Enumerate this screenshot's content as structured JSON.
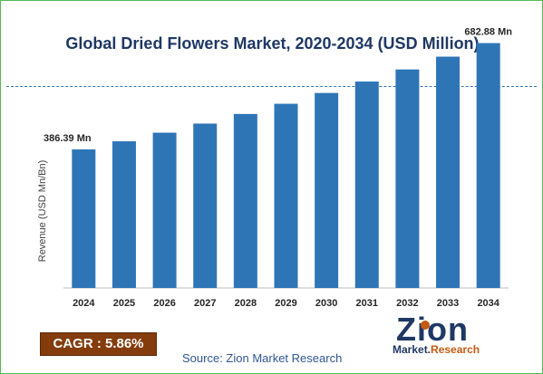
{
  "title": "Global Dried Flowers Market, 2020-2034 (USD Million)",
  "chart_data": {
    "type": "bar",
    "categories": [
      "2024",
      "2025",
      "2026",
      "2027",
      "2028",
      "2029",
      "2030",
      "2031",
      "2032",
      "2033",
      "2034"
    ],
    "values": [
      386.39,
      409.03,
      433.0,
      458.37,
      485.23,
      513.66,
      543.76,
      575.63,
      609.36,
      645.07,
      682.88
    ],
    "data_labels": [
      {
        "category": "2024",
        "text": "386.39 Mn"
      },
      {
        "category": "2034",
        "text": "682.88 Mn"
      }
    ],
    "title": "Global Dried Flowers Market, 2020-2034 (USD Million)",
    "xlabel": "",
    "ylabel": "Revenue (USD Mn/Bn)",
    "ylim": [
      0,
      750
    ],
    "grid": false,
    "bar_color": "#2e75b6"
  },
  "cagr": "CAGR : 5.86%",
  "source": "Source: Zion Market Research",
  "logo": {
    "main": "Zion",
    "sub_left": "Market.",
    "sub_right": "Research",
    "color": "#1f3864",
    "accent": "#c55a11"
  },
  "colors": {
    "border": "#58b957",
    "title": "#1f3864",
    "divider": "#2e75b6",
    "cagr_bg": "#843c0c"
  }
}
